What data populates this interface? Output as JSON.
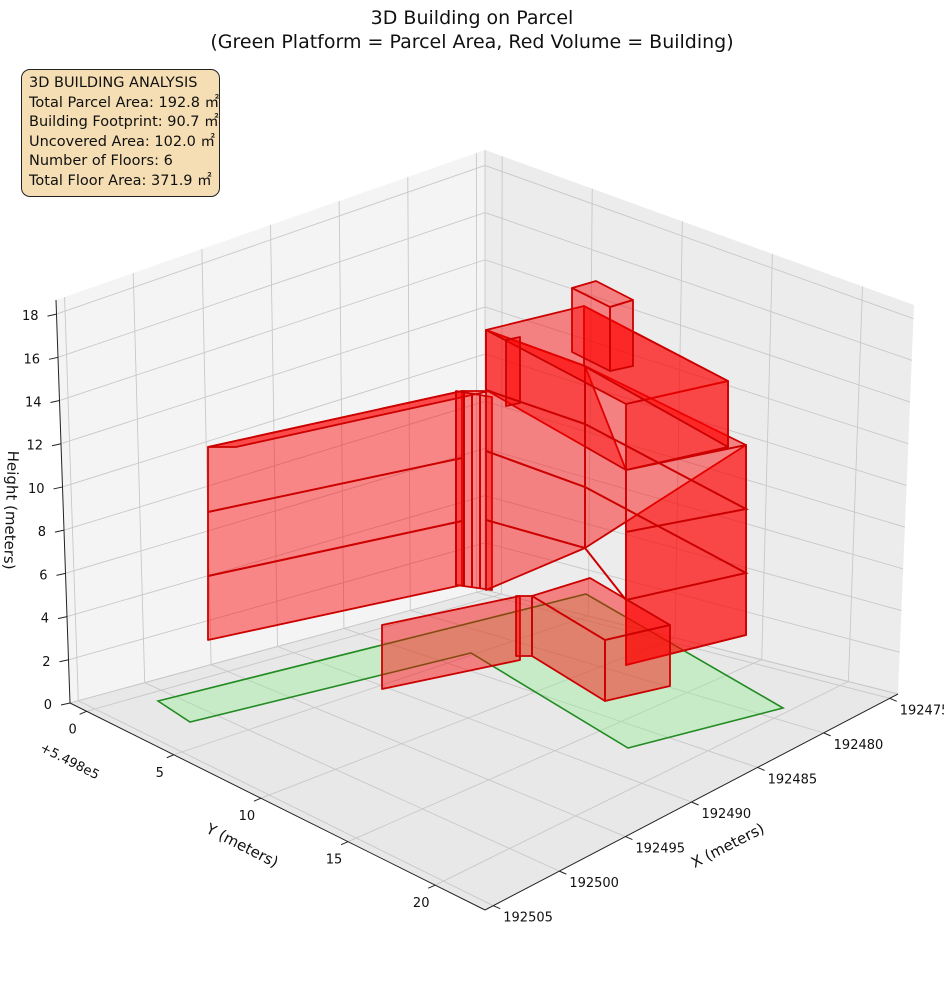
{
  "chart_data": {
    "type": "3d-extruded-polygons",
    "title_lines": [
      "3D Building on Parcel",
      "(Green Platform = Parcel Area, Red Volume = Building)"
    ],
    "info_box": [
      "3D BUILDING ANALYSIS",
      "Total Parcel Area: 192.8 ㎡",
      "Building Footprint: 90.7 ㎡",
      "Uncovered Area: 102.0 ㎡",
      "Number of Floors: 6",
      "Total Floor Area: 371.9 ㎡"
    ],
    "axes": {
      "x": {
        "label": "X (meters)",
        "ticks": [
          "192475",
          "192480",
          "192485",
          "192490",
          "192495",
          "192500",
          "192505"
        ]
      },
      "y": {
        "label": "Y (meters)",
        "ticks": [
          "0",
          "5",
          "10",
          "15",
          "20"
        ],
        "offset_label": "+5.498e5"
      },
      "z": {
        "label": "Height (meters)",
        "ticks": [
          "0",
          "2",
          "4",
          "6",
          "8",
          "10",
          "12",
          "14",
          "16",
          "18"
        ]
      }
    },
    "colors": {
      "parcel_fill": "#90ee90",
      "parcel_edge": "#228b22",
      "building_fill": "#ff0000",
      "building_edge": "#cc0000",
      "pane": "#f2f2f2",
      "grid": "#c8c8c8"
    },
    "series": [
      {
        "name": "Green Platform = Parcel Area"
      },
      {
        "name": "Red Volume = Building"
      }
    ]
  }
}
